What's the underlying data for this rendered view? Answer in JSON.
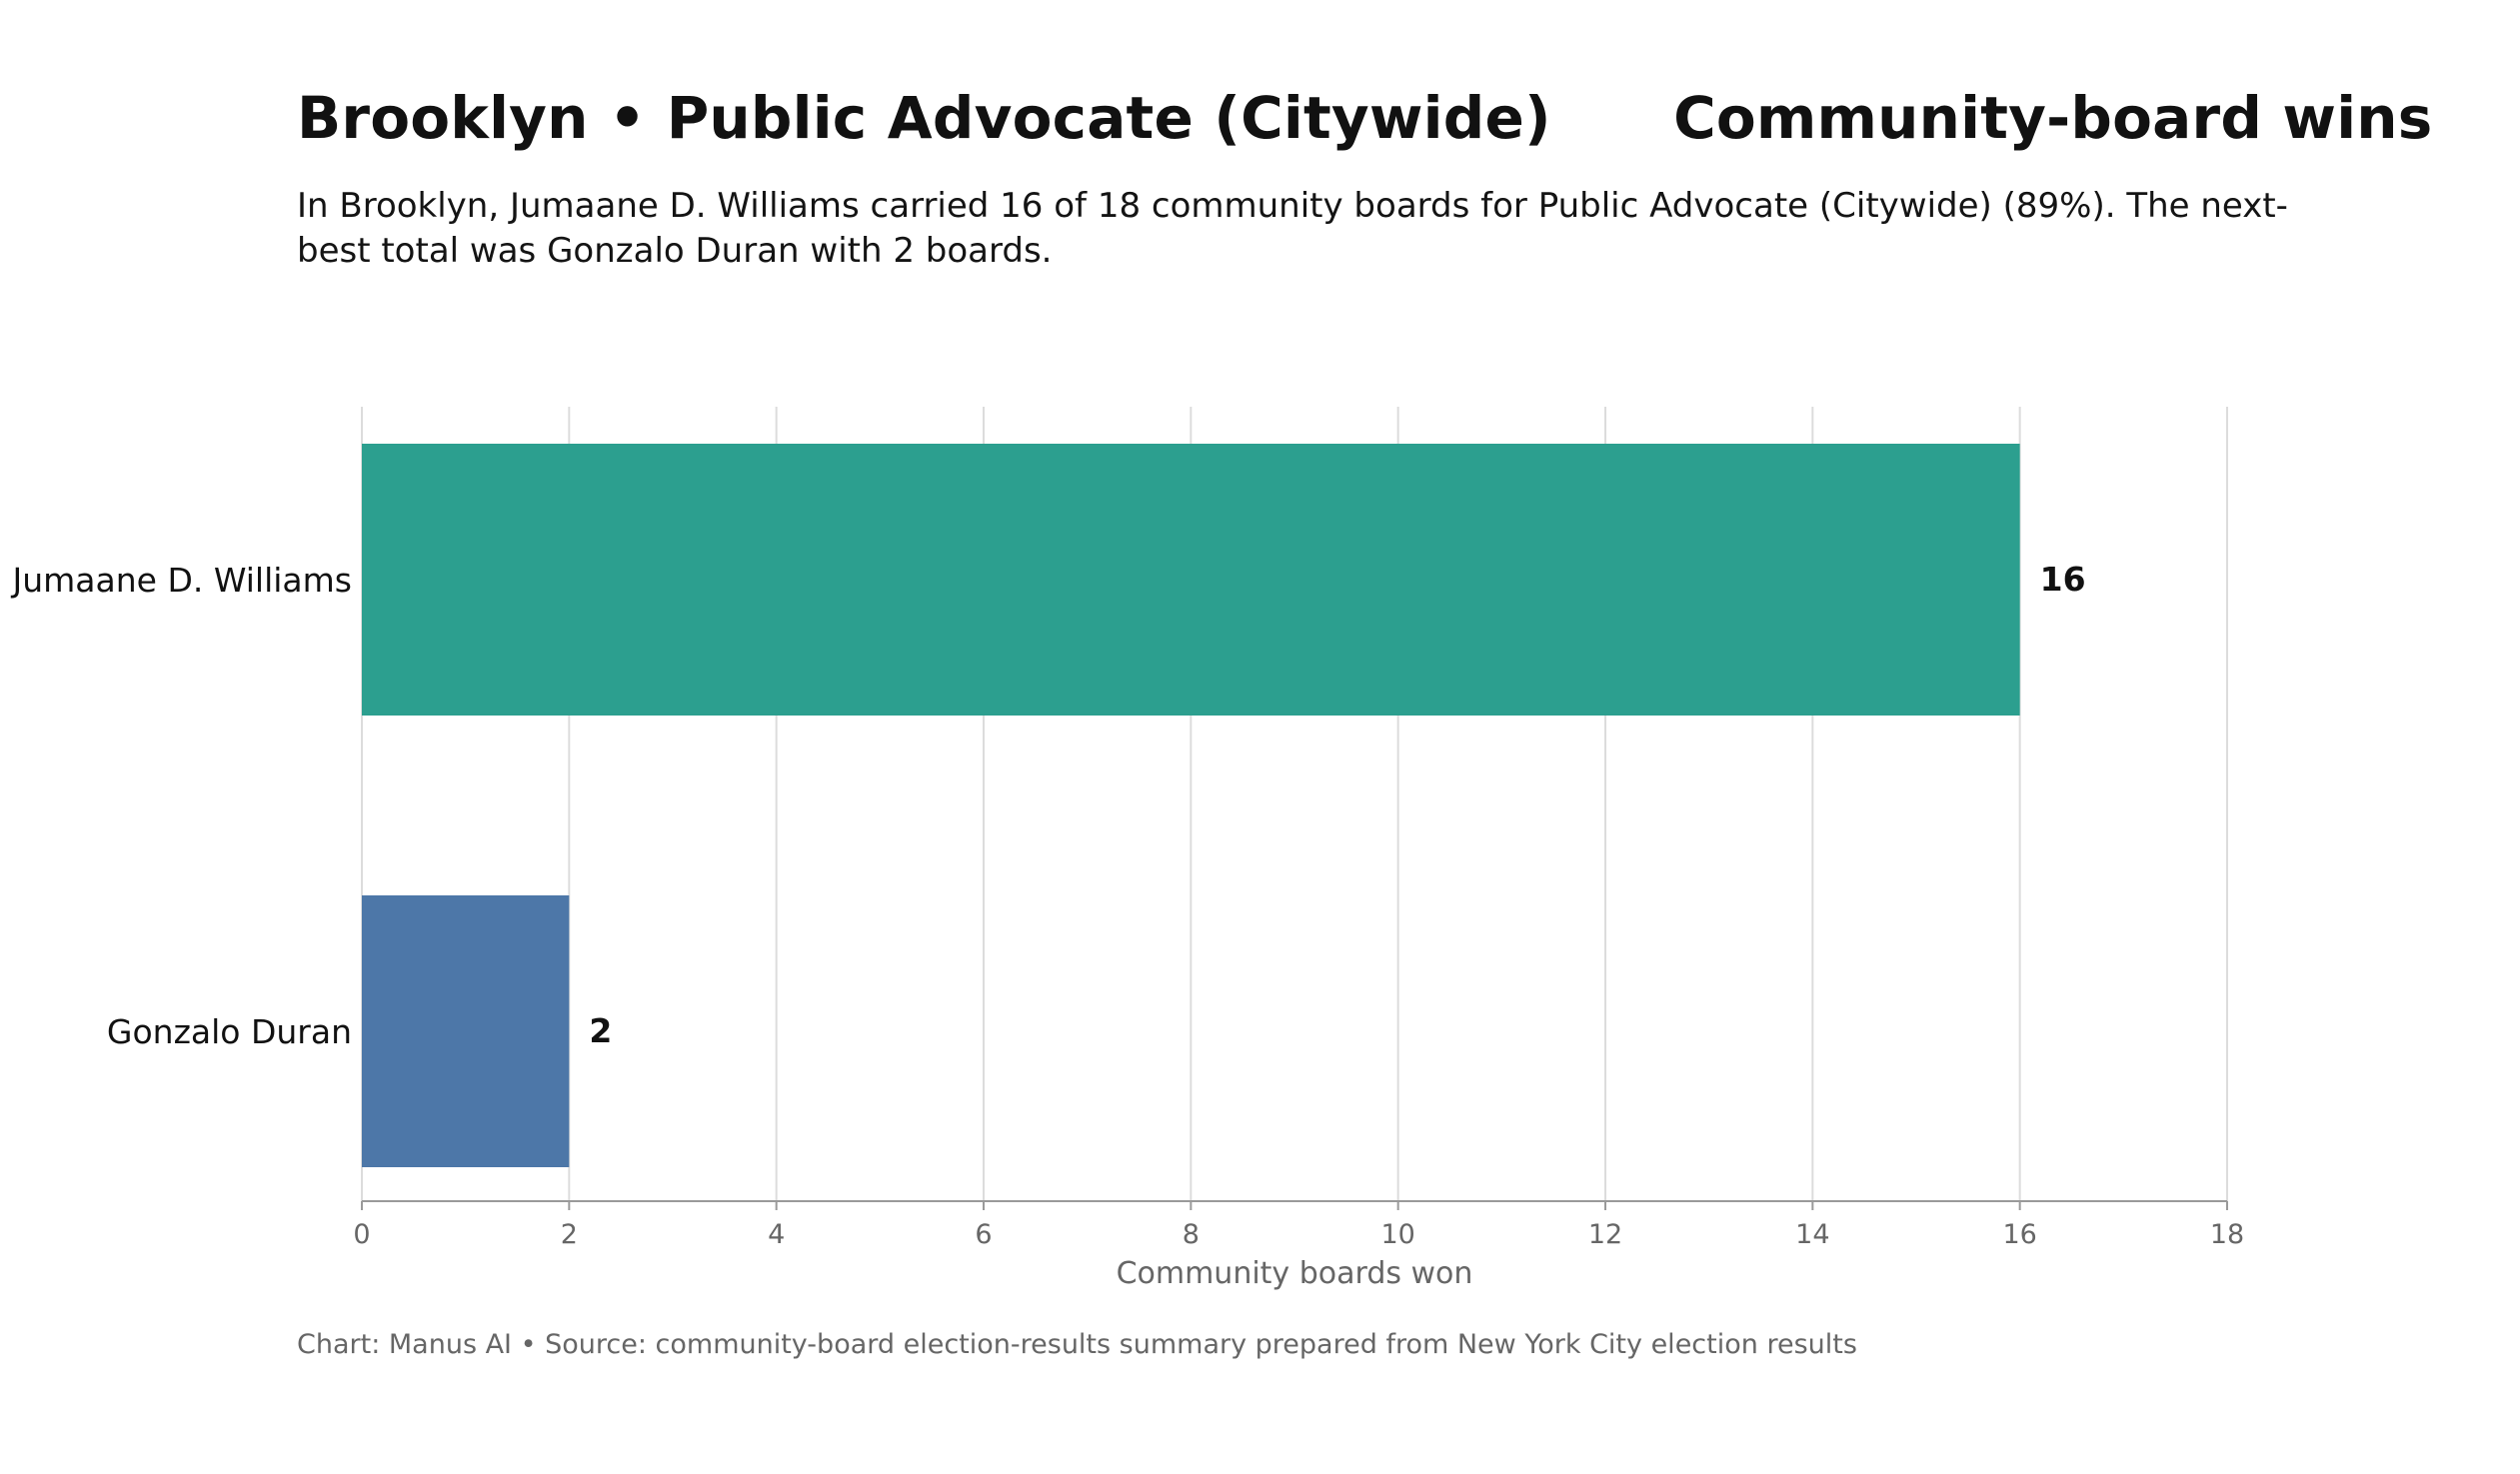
{
  "chart_data": {
    "type": "bar",
    "orientation": "horizontal",
    "title": "Brooklyn • Public Advocate (Citywide)      Community-board wins",
    "subtitle": "In Brooklyn, Jumaane D. Williams carried 16 of 18 community boards for Public Advocate (Citywide) (89%). The next-best total was Gonzalo Duran with 2 boards.",
    "categories": [
      "Jumaane D. Williams",
      "Gonzalo Duran"
    ],
    "values": [
      16,
      2
    ],
    "colors": [
      "#2c9f8f",
      "#4d77a8"
    ],
    "xlabel": "Community boards won",
    "ylabel": "",
    "xlim": [
      0,
      18
    ],
    "xticks": [
      "0",
      "2",
      "4",
      "6",
      "8",
      "10",
      "12",
      "14",
      "16",
      "18"
    ],
    "grid": "vertical",
    "legend": "none",
    "footer": "Chart: Manus AI • Source: community-board election-results summary prepared from New York City election results"
  }
}
